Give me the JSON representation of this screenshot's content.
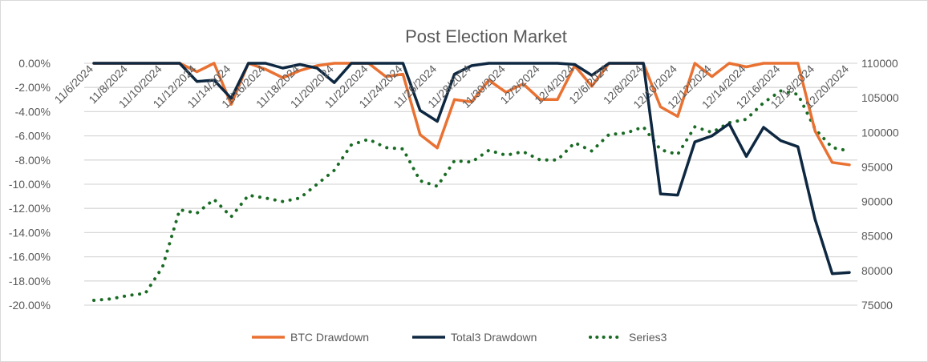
{
  "chart_data": {
    "type": "line",
    "title": "Post Election Market",
    "xlabel": "",
    "ylabel": "",
    "x": [
      "11/6/2024",
      "11/7/2024",
      "11/8/2024",
      "11/9/2024",
      "11/10/2024",
      "11/11/2024",
      "11/12/2024",
      "11/13/2024",
      "11/14/2024",
      "11/15/2024",
      "11/16/2024",
      "11/17/2024",
      "11/18/2024",
      "11/19/2024",
      "11/20/2024",
      "11/21/2024",
      "11/22/2024",
      "11/23/2024",
      "11/24/2024",
      "11/25/2024",
      "11/26/2024",
      "11/27/2024",
      "11/28/2024",
      "11/29/2024",
      "11/30/2024",
      "12/1/2024",
      "12/2/2024",
      "12/3/2024",
      "12/4/2024",
      "12/5/2024",
      "12/6/2024",
      "12/7/2024",
      "12/8/2024",
      "12/9/2024",
      "12/10/2024",
      "12/11/2024",
      "12/12/2024",
      "12/13/2024",
      "12/14/2024",
      "12/15/2024",
      "12/16/2024",
      "12/17/2024",
      "12/18/2024",
      "12/19/2024",
      "12/20/2024"
    ],
    "x_tick_labels": [
      "11/6/2024",
      "11/8/2024",
      "11/10/2024",
      "11/12/2024",
      "11/14/2024",
      "11/16/2024",
      "11/18/2024",
      "11/20/2024",
      "11/22/2024",
      "11/24/2024",
      "11/26/2024",
      "11/28/2024",
      "11/30/2024",
      "12/2/2024",
      "12/4/2024",
      "12/6/2024",
      "12/8/2024",
      "12/10/2024",
      "12/12/2024",
      "12/14/2024",
      "12/16/2024",
      "12/18/2024",
      "12/20/2024"
    ],
    "y_left": {
      "range": [
        -0.2,
        0.0
      ],
      "tick_labels": [
        "0.00%",
        "-2.00%",
        "-4.00%",
        "-6.00%",
        "-8.00%",
        "-10.00%",
        "-12.00%",
        "-14.00%",
        "-16.00%",
        "-18.00%",
        "-20.00%"
      ]
    },
    "y_right": {
      "range": [
        75000,
        110000
      ],
      "tick_labels": [
        "110000",
        "105000",
        "100000",
        "95000",
        "90000",
        "85000",
        "80000",
        "75000"
      ]
    },
    "grid": true,
    "legend_position": "bottom",
    "series": [
      {
        "name": "BTC Drawdown",
        "axis": "left",
        "style": "solid",
        "color": "#E97132",
        "values": [
          0,
          0,
          0,
          0,
          0,
          0,
          -0.007,
          0,
          -0.034,
          0,
          -0.005,
          -0.012,
          -0.006,
          -0.002,
          0,
          0,
          0,
          -0.011,
          -0.009,
          -0.059,
          -0.07,
          -0.03,
          -0.032,
          -0.014,
          -0.024,
          -0.017,
          -0.03,
          -0.03,
          -0.002,
          -0.019,
          0,
          0,
          0,
          -0.036,
          -0.044,
          0,
          -0.011,
          0,
          -0.003,
          0,
          0,
          0,
          -0.056,
          -0.082,
          -0.084
        ]
      },
      {
        "name": "Total3 Drawdown",
        "axis": "left",
        "style": "solid",
        "color": "#0E2841",
        "values": [
          0,
          0,
          0,
          0,
          0,
          0,
          -0.015,
          -0.014,
          -0.029,
          0,
          0,
          -0.004,
          -0.001,
          -0.004,
          -0.016,
          0,
          0,
          0,
          0,
          -0.039,
          -0.048,
          -0.009,
          -0.002,
          0,
          0,
          0,
          0,
          0,
          -0.001,
          -0.01,
          0,
          0,
          0,
          -0.108,
          -0.109,
          -0.065,
          -0.06,
          -0.05,
          -0.077,
          -0.053,
          -0.064,
          -0.069,
          -0.129,
          -0.174,
          -0.173
        ]
      },
      {
        "name": "Series3",
        "axis": "right",
        "style": "dotted",
        "color": "#196B24",
        "values": [
          75700,
          75900,
          76400,
          76700,
          80500,
          88800,
          88300,
          90300,
          87800,
          90900,
          90500,
          90000,
          90500,
          92500,
          94500,
          98200,
          99000,
          97800,
          97600,
          93000,
          92200,
          95900,
          95700,
          97400,
          96700,
          97200,
          96000,
          96000,
          98500,
          97300,
          99700,
          99900,
          100800,
          97500,
          96800,
          100800,
          100000,
          101400,
          101900,
          104300,
          106000,
          105500,
          100500,
          97800,
          97300
        ]
      }
    ]
  }
}
